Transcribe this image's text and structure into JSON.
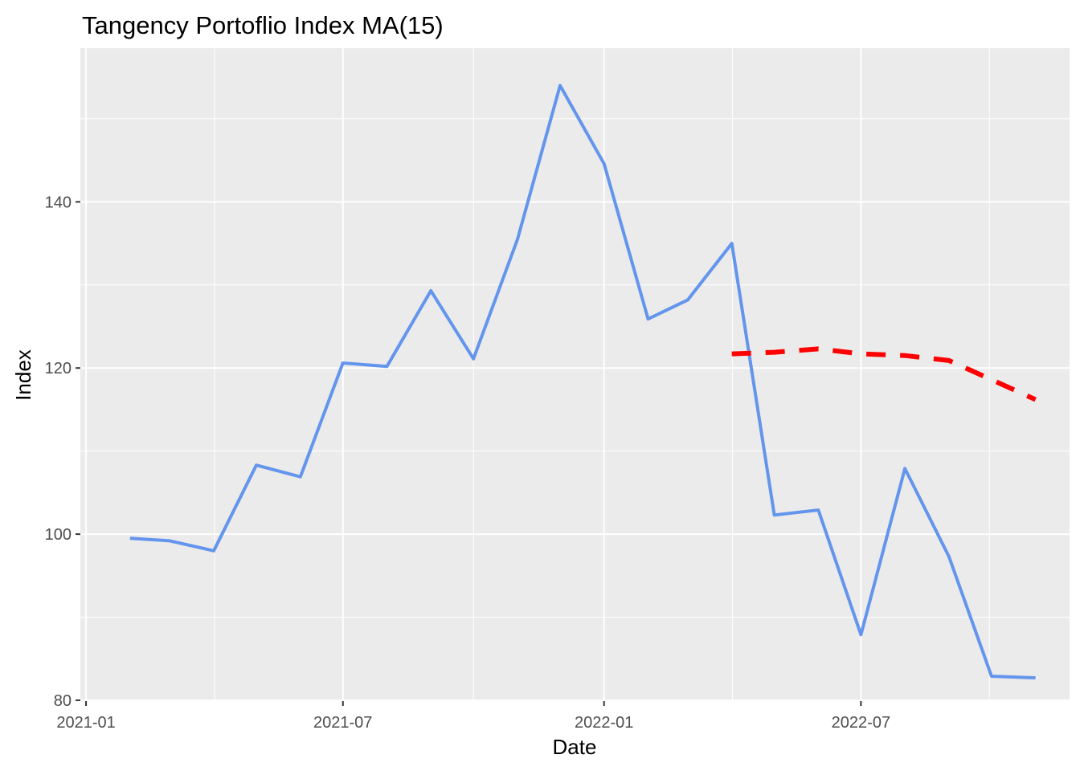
{
  "chart_data": {
    "type": "line",
    "title": "Tangency Portoflio Index MA(15)",
    "xlabel": "Date",
    "ylabel": "Index",
    "x_tick_labels": [
      "2021-01",
      "2021-07",
      "2022-01",
      "2022-07"
    ],
    "x_ticks": [
      "2021-01-01",
      "2021-07-01",
      "2022-01-01",
      "2022-07-01"
    ],
    "y_tick_labels": [
      "80",
      "100",
      "120",
      "140"
    ],
    "y_ticks": [
      80,
      100,
      120,
      140
    ],
    "xlim": [
      "2020-12-28",
      "2022-11-25"
    ],
    "ylim": [
      79.9,
      158.5
    ],
    "grid": true,
    "legend": "none",
    "series": [
      {
        "color": "#6495ED",
        "style": "solid",
        "points": [
          [
            "2021-02-01",
            99.5
          ],
          [
            "2021-03-01",
            99.2
          ],
          [
            "2021-04-01",
            98.0
          ],
          [
            "2021-05-01",
            108.3
          ],
          [
            "2021-06-01",
            106.9
          ],
          [
            "2021-07-01",
            120.6
          ],
          [
            "2021-08-01",
            120.2
          ],
          [
            "2021-09-01",
            129.3
          ],
          [
            "2021-10-01",
            121.1
          ],
          [
            "2021-11-01",
            135.5
          ],
          [
            "2021-12-01",
            154.0
          ],
          [
            "2022-01-01",
            144.6
          ],
          [
            "2022-02-01",
            125.9
          ],
          [
            "2022-03-01",
            128.2
          ],
          [
            "2022-04-01",
            135.0
          ],
          [
            "2022-05-01",
            102.3
          ],
          [
            "2022-06-01",
            102.9
          ],
          [
            "2022-07-01",
            87.9
          ],
          [
            "2022-08-01",
            107.9
          ],
          [
            "2022-09-01",
            97.3
          ],
          [
            "2022-10-01",
            82.9
          ],
          [
            "2022-11-01",
            82.7
          ]
        ]
      },
      {
        "color": "#FF0000",
        "style": "dashed",
        "points": [
          [
            "2022-04-01",
            121.7
          ],
          [
            "2022-05-01",
            121.9
          ],
          [
            "2022-06-01",
            122.3
          ],
          [
            "2022-07-01",
            121.7
          ],
          [
            "2022-08-01",
            121.5
          ],
          [
            "2022-09-01",
            120.9
          ],
          [
            "2022-10-01",
            118.6
          ],
          [
            "2022-11-01",
            116.2
          ]
        ]
      }
    ]
  }
}
